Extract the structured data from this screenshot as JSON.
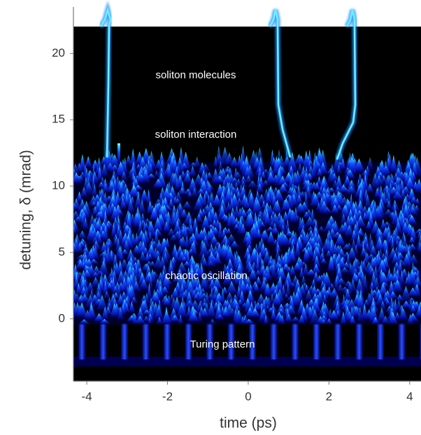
{
  "chart_data": {
    "type": "waterfall",
    "x_label": "time (ps)",
    "y_label": "detuning, δ (mrad)",
    "xlim": [
      -4.33,
      4.28
    ],
    "ylim": [
      -4.7,
      23.5
    ],
    "xticks": [
      -4,
      -2,
      0,
      2,
      4
    ],
    "yticks": [
      0,
      5,
      10,
      15,
      20
    ],
    "annotations": [
      "soliton molecules",
      "soliton interaction",
      "chaotic oscillation",
      "Turing pattern"
    ]
  }
}
